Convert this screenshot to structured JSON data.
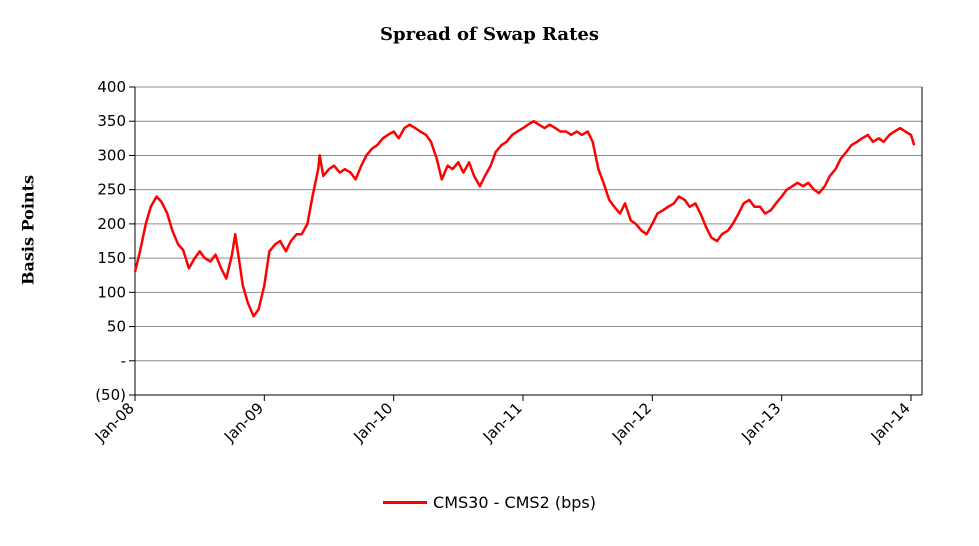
{
  "chart_data": {
    "type": "line",
    "title": "Spread of Swap Rates",
    "xlabel": "",
    "ylabel": "Basis Points",
    "ylim": [
      -50,
      400
    ],
    "y_ticks": [
      {
        "value": 400,
        "label": "400"
      },
      {
        "value": 350,
        "label": "350"
      },
      {
        "value": 300,
        "label": "300"
      },
      {
        "value": 250,
        "label": "250"
      },
      {
        "value": 200,
        "label": "200"
      },
      {
        "value": 150,
        "label": "150"
      },
      {
        "value": 100,
        "label": "100"
      },
      {
        "value": 50,
        "label": "50"
      },
      {
        "value": 0,
        "label": "-"
      },
      {
        "value": -50,
        "label": "(50)"
      }
    ],
    "xlim": [
      "2008-01",
      "2014-01"
    ],
    "x_ticks": [
      "Jan-08",
      "Jan-09",
      "Jan-10",
      "Jan-11",
      "Jan-12",
      "Jan-13",
      "Jan-14"
    ],
    "grid": true,
    "legend_position": "bottom",
    "series": [
      {
        "name": "CMS30 - CMS2 (bps)",
        "color": "#ff0000",
        "points": [
          [
            "2008-01",
            130
          ],
          [
            "2008-01-15",
            160
          ],
          [
            "2008-02",
            200
          ],
          [
            "2008-02-15",
            225
          ],
          [
            "2008-03",
            240
          ],
          [
            "2008-03-15",
            232
          ],
          [
            "2008-04",
            215
          ],
          [
            "2008-04-15",
            190
          ],
          [
            "2008-05",
            170
          ],
          [
            "2008-05-15",
            162
          ],
          [
            "2008-06",
            135
          ],
          [
            "2008-06-15",
            148
          ],
          [
            "2008-07",
            160
          ],
          [
            "2008-07-15",
            150
          ],
          [
            "2008-08",
            145
          ],
          [
            "2008-08-15",
            155
          ],
          [
            "2008-09",
            135
          ],
          [
            "2008-09-15",
            120
          ],
          [
            "2008-10",
            155
          ],
          [
            "2008-10-10",
            185
          ],
          [
            "2008-10-20",
            150
          ],
          [
            "2008-11",
            110
          ],
          [
            "2008-11-15",
            85
          ],
          [
            "2008-12",
            65
          ],
          [
            "2008-12-15",
            75
          ],
          [
            "2009-01",
            110
          ],
          [
            "2009-01-15",
            160
          ],
          [
            "2009-02",
            170
          ],
          [
            "2009-02-15",
            175
          ],
          [
            "2009-03",
            160
          ],
          [
            "2009-03-15",
            175
          ],
          [
            "2009-04",
            185
          ],
          [
            "2009-04-15",
            185
          ],
          [
            "2009-05",
            200
          ],
          [
            "2009-05-15",
            240
          ],
          [
            "2009-06",
            280
          ],
          [
            "2009-06-05",
            300
          ],
          [
            "2009-06-15",
            270
          ],
          [
            "2009-07",
            280
          ],
          [
            "2009-07-15",
            285
          ],
          [
            "2009-08",
            275
          ],
          [
            "2009-08-15",
            280
          ],
          [
            "2009-09",
            275
          ],
          [
            "2009-09-15",
            265
          ],
          [
            "2009-10",
            285
          ],
          [
            "2009-10-15",
            300
          ],
          [
            "2009-11",
            310
          ],
          [
            "2009-11-15",
            315
          ],
          [
            "2009-12",
            325
          ],
          [
            "2009-12-15",
            330
          ],
          [
            "2010-01",
            335
          ],
          [
            "2010-01-15",
            325
          ],
          [
            "2010-02",
            340
          ],
          [
            "2010-02-15",
            345
          ],
          [
            "2010-03",
            340
          ],
          [
            "2010-03-15",
            335
          ],
          [
            "2010-04",
            330
          ],
          [
            "2010-04-15",
            320
          ],
          [
            "2010-05",
            295
          ],
          [
            "2010-05-15",
            265
          ],
          [
            "2010-06",
            285
          ],
          [
            "2010-06-15",
            280
          ],
          [
            "2010-07",
            290
          ],
          [
            "2010-07-15",
            275
          ],
          [
            "2010-08",
            290
          ],
          [
            "2010-08-15",
            270
          ],
          [
            "2010-09",
            255
          ],
          [
            "2010-09-15",
            270
          ],
          [
            "2010-10",
            285
          ],
          [
            "2010-10-15",
            305
          ],
          [
            "2010-11",
            315
          ],
          [
            "2010-11-15",
            320
          ],
          [
            "2010-12",
            330
          ],
          [
            "2010-12-15",
            335
          ],
          [
            "2011-01",
            340
          ],
          [
            "2011-01-15",
            345
          ],
          [
            "2011-02",
            350
          ],
          [
            "2011-02-15",
            345
          ],
          [
            "2011-03",
            340
          ],
          [
            "2011-03-15",
            345
          ],
          [
            "2011-04",
            340
          ],
          [
            "2011-04-15",
            335
          ],
          [
            "2011-05",
            335
          ],
          [
            "2011-05-15",
            330
          ],
          [
            "2011-06",
            335
          ],
          [
            "2011-06-15",
            330
          ],
          [
            "2011-07",
            335
          ],
          [
            "2011-07-15",
            320
          ],
          [
            "2011-08",
            280
          ],
          [
            "2011-08-15",
            260
          ],
          [
            "2011-09",
            235
          ],
          [
            "2011-09-15",
            225
          ],
          [
            "2011-10",
            215
          ],
          [
            "2011-10-15",
            230
          ],
          [
            "2011-11",
            205
          ],
          [
            "2011-11-15",
            200
          ],
          [
            "2011-12",
            190
          ],
          [
            "2011-12-15",
            185
          ],
          [
            "2012-01",
            200
          ],
          [
            "2012-01-15",
            215
          ],
          [
            "2012-02",
            220
          ],
          [
            "2012-02-15",
            225
          ],
          [
            "2012-03",
            230
          ],
          [
            "2012-03-15",
            240
          ],
          [
            "2012-04",
            235
          ],
          [
            "2012-04-15",
            225
          ],
          [
            "2012-05",
            230
          ],
          [
            "2012-05-15",
            215
          ],
          [
            "2012-06",
            195
          ],
          [
            "2012-06-15",
            180
          ],
          [
            "2012-07",
            175
          ],
          [
            "2012-07-15",
            185
          ],
          [
            "2012-08",
            190
          ],
          [
            "2012-08-15",
            200
          ],
          [
            "2012-09",
            215
          ],
          [
            "2012-09-15",
            230
          ],
          [
            "2012-10",
            235
          ],
          [
            "2012-10-15",
            225
          ],
          [
            "2012-11",
            225
          ],
          [
            "2012-11-15",
            215
          ],
          [
            "2012-12",
            220
          ],
          [
            "2012-12-15",
            230
          ],
          [
            "2013-01",
            240
          ],
          [
            "2013-01-15",
            250
          ],
          [
            "2013-02",
            255
          ],
          [
            "2013-02-15",
            260
          ],
          [
            "2013-03",
            255
          ],
          [
            "2013-03-15",
            260
          ],
          [
            "2013-04",
            250
          ],
          [
            "2013-04-15",
            245
          ],
          [
            "2013-05",
            255
          ],
          [
            "2013-05-15",
            270
          ],
          [
            "2013-06",
            280
          ],
          [
            "2013-06-15",
            295
          ],
          [
            "2013-07",
            305
          ],
          [
            "2013-07-15",
            315
          ],
          [
            "2013-08",
            320
          ],
          [
            "2013-08-15",
            325
          ],
          [
            "2013-09",
            330
          ],
          [
            "2013-09-15",
            320
          ],
          [
            "2013-10",
            325
          ],
          [
            "2013-10-15",
            320
          ],
          [
            "2013-11",
            330
          ],
          [
            "2013-11-15",
            335
          ],
          [
            "2013-12",
            340
          ],
          [
            "2013-12-15",
            335
          ],
          [
            "2014-01",
            330
          ],
          [
            "2014-01-10",
            315
          ]
        ]
      }
    ]
  }
}
